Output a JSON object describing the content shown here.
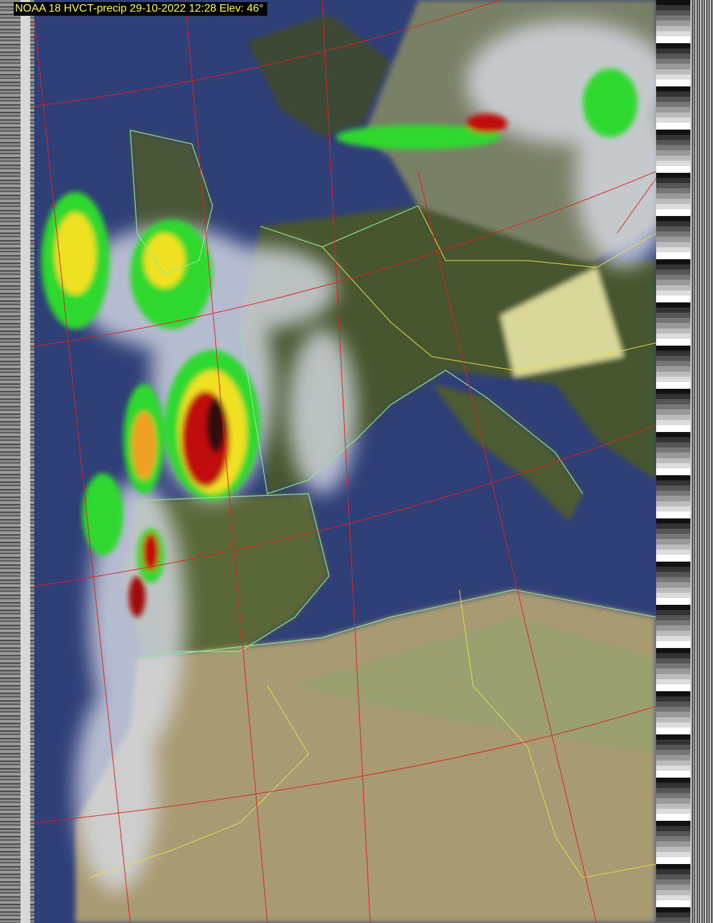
{
  "title": "NOAA 18 HVCT-precip 29-10-2022 12:28 Elev: 46°",
  "colors": {
    "sea": "#2f3f78",
    "land_green": "#4a5a34",
    "desert": "#a89a72",
    "cloud": "#d8dce6",
    "precip_light": "#2fd82f",
    "precip_mid": "#f0e020",
    "precip_heavy": "#c01010",
    "grid": "#e02020",
    "borders": "#e8e040",
    "coastline": "#90e890"
  }
}
